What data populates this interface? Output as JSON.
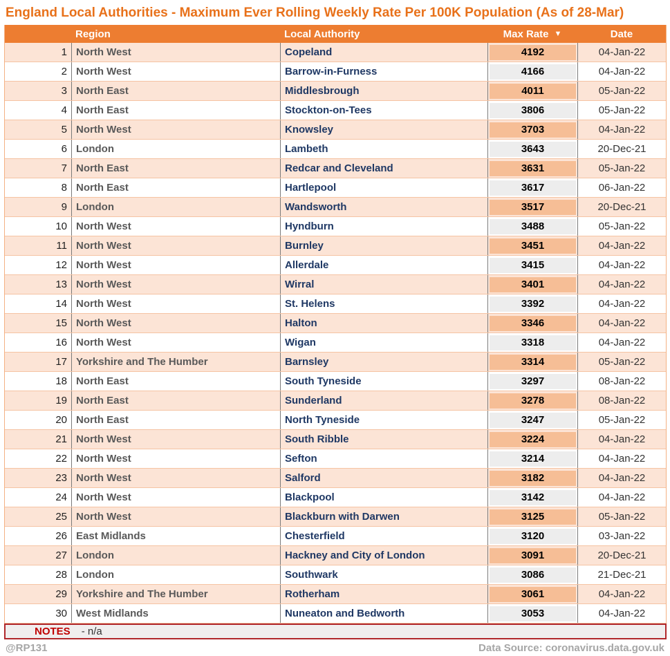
{
  "title": "England Local Authorities - Maximum Ever Rolling Weekly Rate Per 100K Population (As of 28-Mar)",
  "header": {
    "region": "Region",
    "local_authority": "Local Authority",
    "max_rate": "Max Rate",
    "sort_icon": "▼",
    "date": "Date"
  },
  "chart_data": {
    "type": "table",
    "title": "England Local Authorities - Maximum Ever Rolling Weekly Rate Per 100K Population (As of 28-Mar)",
    "columns": [
      "Region",
      "Local Authority",
      "Max Rate",
      "Date"
    ],
    "sort": {
      "column": "Max Rate",
      "direction": "descending"
    },
    "rows": [
      {
        "rank": 1,
        "region": "North West",
        "local_authority": "Copeland",
        "max_rate": 4192,
        "date": "04-Jan-22"
      },
      {
        "rank": 2,
        "region": "North West",
        "local_authority": "Barrow-in-Furness",
        "max_rate": 4166,
        "date": "04-Jan-22"
      },
      {
        "rank": 3,
        "region": "North East",
        "local_authority": "Middlesbrough",
        "max_rate": 4011,
        "date": "05-Jan-22"
      },
      {
        "rank": 4,
        "region": "North East",
        "local_authority": "Stockton-on-Tees",
        "max_rate": 3806,
        "date": "05-Jan-22"
      },
      {
        "rank": 5,
        "region": "North West",
        "local_authority": "Knowsley",
        "max_rate": 3703,
        "date": "04-Jan-22"
      },
      {
        "rank": 6,
        "region": "London",
        "local_authority": "Lambeth",
        "max_rate": 3643,
        "date": "20-Dec-21"
      },
      {
        "rank": 7,
        "region": "North East",
        "local_authority": "Redcar and Cleveland",
        "max_rate": 3631,
        "date": "05-Jan-22"
      },
      {
        "rank": 8,
        "region": "North East",
        "local_authority": "Hartlepool",
        "max_rate": 3617,
        "date": "06-Jan-22"
      },
      {
        "rank": 9,
        "region": "London",
        "local_authority": "Wandsworth",
        "max_rate": 3517,
        "date": "20-Dec-21"
      },
      {
        "rank": 10,
        "region": "North West",
        "local_authority": "Hyndburn",
        "max_rate": 3488,
        "date": "05-Jan-22"
      },
      {
        "rank": 11,
        "region": "North West",
        "local_authority": "Burnley",
        "max_rate": 3451,
        "date": "04-Jan-22"
      },
      {
        "rank": 12,
        "region": "North West",
        "local_authority": "Allerdale",
        "max_rate": 3415,
        "date": "04-Jan-22"
      },
      {
        "rank": 13,
        "region": "North West",
        "local_authority": "Wirral",
        "max_rate": 3401,
        "date": "04-Jan-22"
      },
      {
        "rank": 14,
        "region": "North West",
        "local_authority": "St. Helens",
        "max_rate": 3392,
        "date": "04-Jan-22"
      },
      {
        "rank": 15,
        "region": "North West",
        "local_authority": "Halton",
        "max_rate": 3346,
        "date": "04-Jan-22"
      },
      {
        "rank": 16,
        "region": "North West",
        "local_authority": "Wigan",
        "max_rate": 3318,
        "date": "04-Jan-22"
      },
      {
        "rank": 17,
        "region": "Yorkshire and The Humber",
        "local_authority": "Barnsley",
        "max_rate": 3314,
        "date": "05-Jan-22"
      },
      {
        "rank": 18,
        "region": "North East",
        "local_authority": "South Tyneside",
        "max_rate": 3297,
        "date": "08-Jan-22"
      },
      {
        "rank": 19,
        "region": "North East",
        "local_authority": "Sunderland",
        "max_rate": 3278,
        "date": "08-Jan-22"
      },
      {
        "rank": 20,
        "region": "North East",
        "local_authority": "North Tyneside",
        "max_rate": 3247,
        "date": "05-Jan-22"
      },
      {
        "rank": 21,
        "region": "North West",
        "local_authority": "South Ribble",
        "max_rate": 3224,
        "date": "04-Jan-22"
      },
      {
        "rank": 22,
        "region": "North West",
        "local_authority": "Sefton",
        "max_rate": 3214,
        "date": "04-Jan-22"
      },
      {
        "rank": 23,
        "region": "North West",
        "local_authority": "Salford",
        "max_rate": 3182,
        "date": "04-Jan-22"
      },
      {
        "rank": 24,
        "region": "North West",
        "local_authority": "Blackpool",
        "max_rate": 3142,
        "date": "04-Jan-22"
      },
      {
        "rank": 25,
        "region": "North West",
        "local_authority": "Blackburn with Darwen",
        "max_rate": 3125,
        "date": "05-Jan-22"
      },
      {
        "rank": 26,
        "region": "East Midlands",
        "local_authority": "Chesterfield",
        "max_rate": 3120,
        "date": "03-Jan-22"
      },
      {
        "rank": 27,
        "region": "London",
        "local_authority": "Hackney and City of London",
        "max_rate": 3091,
        "date": "20-Dec-21"
      },
      {
        "rank": 28,
        "region": "London",
        "local_authority": "Southwark",
        "max_rate": 3086,
        "date": "21-Dec-21"
      },
      {
        "rank": 29,
        "region": "Yorkshire and The Humber",
        "local_authority": "Rotherham",
        "max_rate": 3061,
        "date": "04-Jan-22"
      },
      {
        "rank": 30,
        "region": "West Midlands",
        "local_authority": "Nuneaton and Bedworth",
        "max_rate": 3053,
        "date": "04-Jan-22"
      }
    ]
  },
  "notes": {
    "label": "NOTES",
    "text": "- n/a"
  },
  "footer": {
    "handle": "@RP131",
    "data_source": "Data Source: coronavirus.data.gov.uk"
  },
  "colors": {
    "title_orange": "#E8711A",
    "header_orange": "#ED7D31",
    "row_alt_peach": "#FCE4D6",
    "rate_fill_odd": "#F6BE96",
    "rate_fill_even": "#EDEDED",
    "grid_line_peach": "#F5C3A3",
    "column_line_gray": "#7A7A7A",
    "authority_navy": "#1F3864",
    "region_gray": "#595959",
    "notes_red": "#C00000",
    "notes_border_red": "#B0272B",
    "footer_gray": "#A6A6A6"
  }
}
